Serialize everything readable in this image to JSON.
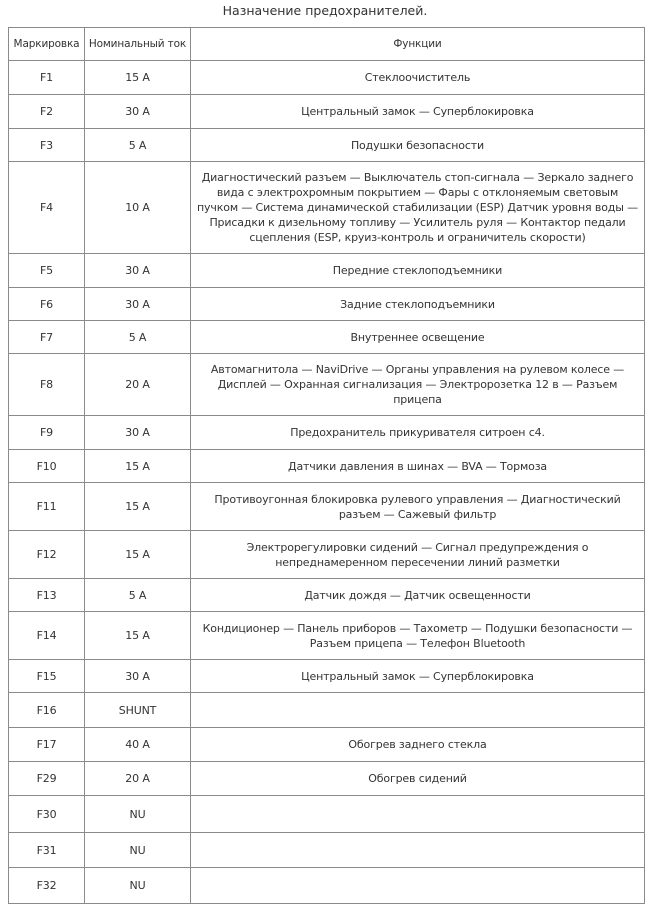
{
  "title": "Назначение предохранителей.",
  "table": {
    "headers": [
      "Маркировка",
      "Номинальный ток",
      "Функции"
    ],
    "rows": [
      {
        "mark": "F1",
        "current": "15 A",
        "function": "Стеклоочиститель"
      },
      {
        "mark": "F2",
        "current": "30 A",
        "function": "Центральный замок — Суперблокировка"
      },
      {
        "mark": "F3",
        "current": "5 A",
        "function": "Подушки безопасности"
      },
      {
        "mark": "F4",
        "current": "10 A",
        "function": "Диагностический разъем — Выключатель стоп-сигнала — Зеркало заднего вида с электрохромным покрытием — Фары с отклоняемым световым пучком — Система динамической стабилизации (ESP) Датчик уровня воды — Присадки к дизельному топливу — Усилитель руля — Контактор педали сцепления (ESP, круиз-контроль и ограничитель скорости)"
      },
      {
        "mark": "F5",
        "current": "30 A",
        "function": "Передние стеклоподъемники"
      },
      {
        "mark": "F6",
        "current": "30 A",
        "function": "Задние стеклоподъемники"
      },
      {
        "mark": "F7",
        "current": "5 A",
        "function": "Внутреннее освещение"
      },
      {
        "mark": "F8",
        "current": "20 A",
        "function": "Автомагнитола — NaviDrive — Органы управления на рулевом колесе — Дисплей — Охранная сигнализация — Электророзетка 12 в — Разъем прицепа"
      },
      {
        "mark": "F9",
        "current": "30 A",
        "function": "Предохранитель прикуривателя ситроен с4."
      },
      {
        "mark": "F10",
        "current": "15 A",
        "function": "Датчики давления в шинах — BVA — Тормоза"
      },
      {
        "mark": "F11",
        "current": "15 A",
        "function": "Противоугонная блокировка рулевого управления — Диагностический разъем — Сажевый фильтр"
      },
      {
        "mark": "F12",
        "current": "15 A",
        "function": "Электрорегулировки сидений — Сигнал предупреждения о непреднамеренном пересечении линий разметки"
      },
      {
        "mark": "F13",
        "current": "5 A",
        "function": "Датчик дождя — Датчик освещенности"
      },
      {
        "mark": "F14",
        "current": "15 A",
        "function": "Кондиционер — Панель приборов — Тахометр — Подушки безопасности — Разъем прицепа — Телефон Bluetooth"
      },
      {
        "mark": "F15",
        "current": "30 A",
        "function": "Центральный замок — Суперблокировка"
      },
      {
        "mark": "F16",
        "current": "SHUNT",
        "function": ""
      },
      {
        "mark": "F17",
        "current": "40 A",
        "function": "Обогрев заднего стекла"
      },
      {
        "mark": "F29",
        "current": "20 A",
        "function": "Обогрев сидений"
      },
      {
        "mark": "F30",
        "current": "NU",
        "function": ""
      },
      {
        "mark": "F31",
        "current": "NU",
        "function": ""
      },
      {
        "mark": "F32",
        "current": "NU",
        "function": ""
      }
    ]
  }
}
